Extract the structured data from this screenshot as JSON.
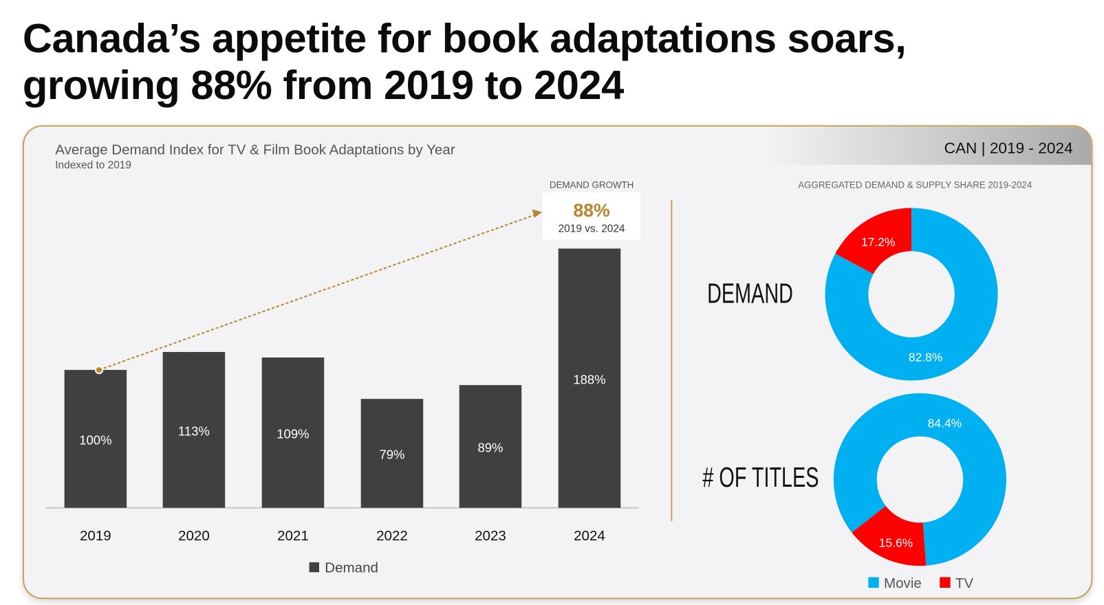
{
  "title_line1": "Canada’s appetite for book adaptations soars,",
  "title_line2": "growing 88% from 2019 to 2024",
  "header_tag": "CAN  | 2019 - 2024",
  "colors": {
    "bar": "#404040",
    "accent": "#b8862b",
    "movie": "#00b0f0",
    "tv": "#ff0000"
  },
  "chart_data": [
    {
      "type": "bar",
      "title": "Average Demand Index for TV & Film Book Adaptations by Year",
      "subtitle": "Indexed to 2019",
      "categories": [
        "2019",
        "2020",
        "2021",
        "2022",
        "2023",
        "2024"
      ],
      "series": [
        {
          "name": "Demand",
          "values": [
            100,
            113,
            109,
            79,
            89,
            188
          ]
        }
      ],
      "data_labels": [
        "100%",
        "113%",
        "109%",
        "79%",
        "89%",
        "188%"
      ],
      "annotation": {
        "label": "DEMAND GROWTH",
        "value": "88%",
        "detail": "2019 vs. 2024"
      }
    },
    {
      "type": "pie",
      "title": "AGGREGATED DEMAND & SUPPLY SHARE 2019-2024",
      "legend": [
        "Movie",
        "TV"
      ],
      "charts": [
        {
          "name": "DEMAND",
          "slices": [
            {
              "label": "Movie",
              "value": 82.8,
              "text": "82.8%"
            },
            {
              "label": "TV",
              "value": 17.2,
              "text": "17.2%"
            }
          ]
        },
        {
          "name": "# OF TITLES",
          "slices": [
            {
              "label": "Movie",
              "value": 84.4,
              "text": "84.4%"
            },
            {
              "label": "TV",
              "value": 15.6,
              "text": "15.6%"
            }
          ]
        }
      ]
    }
  ]
}
